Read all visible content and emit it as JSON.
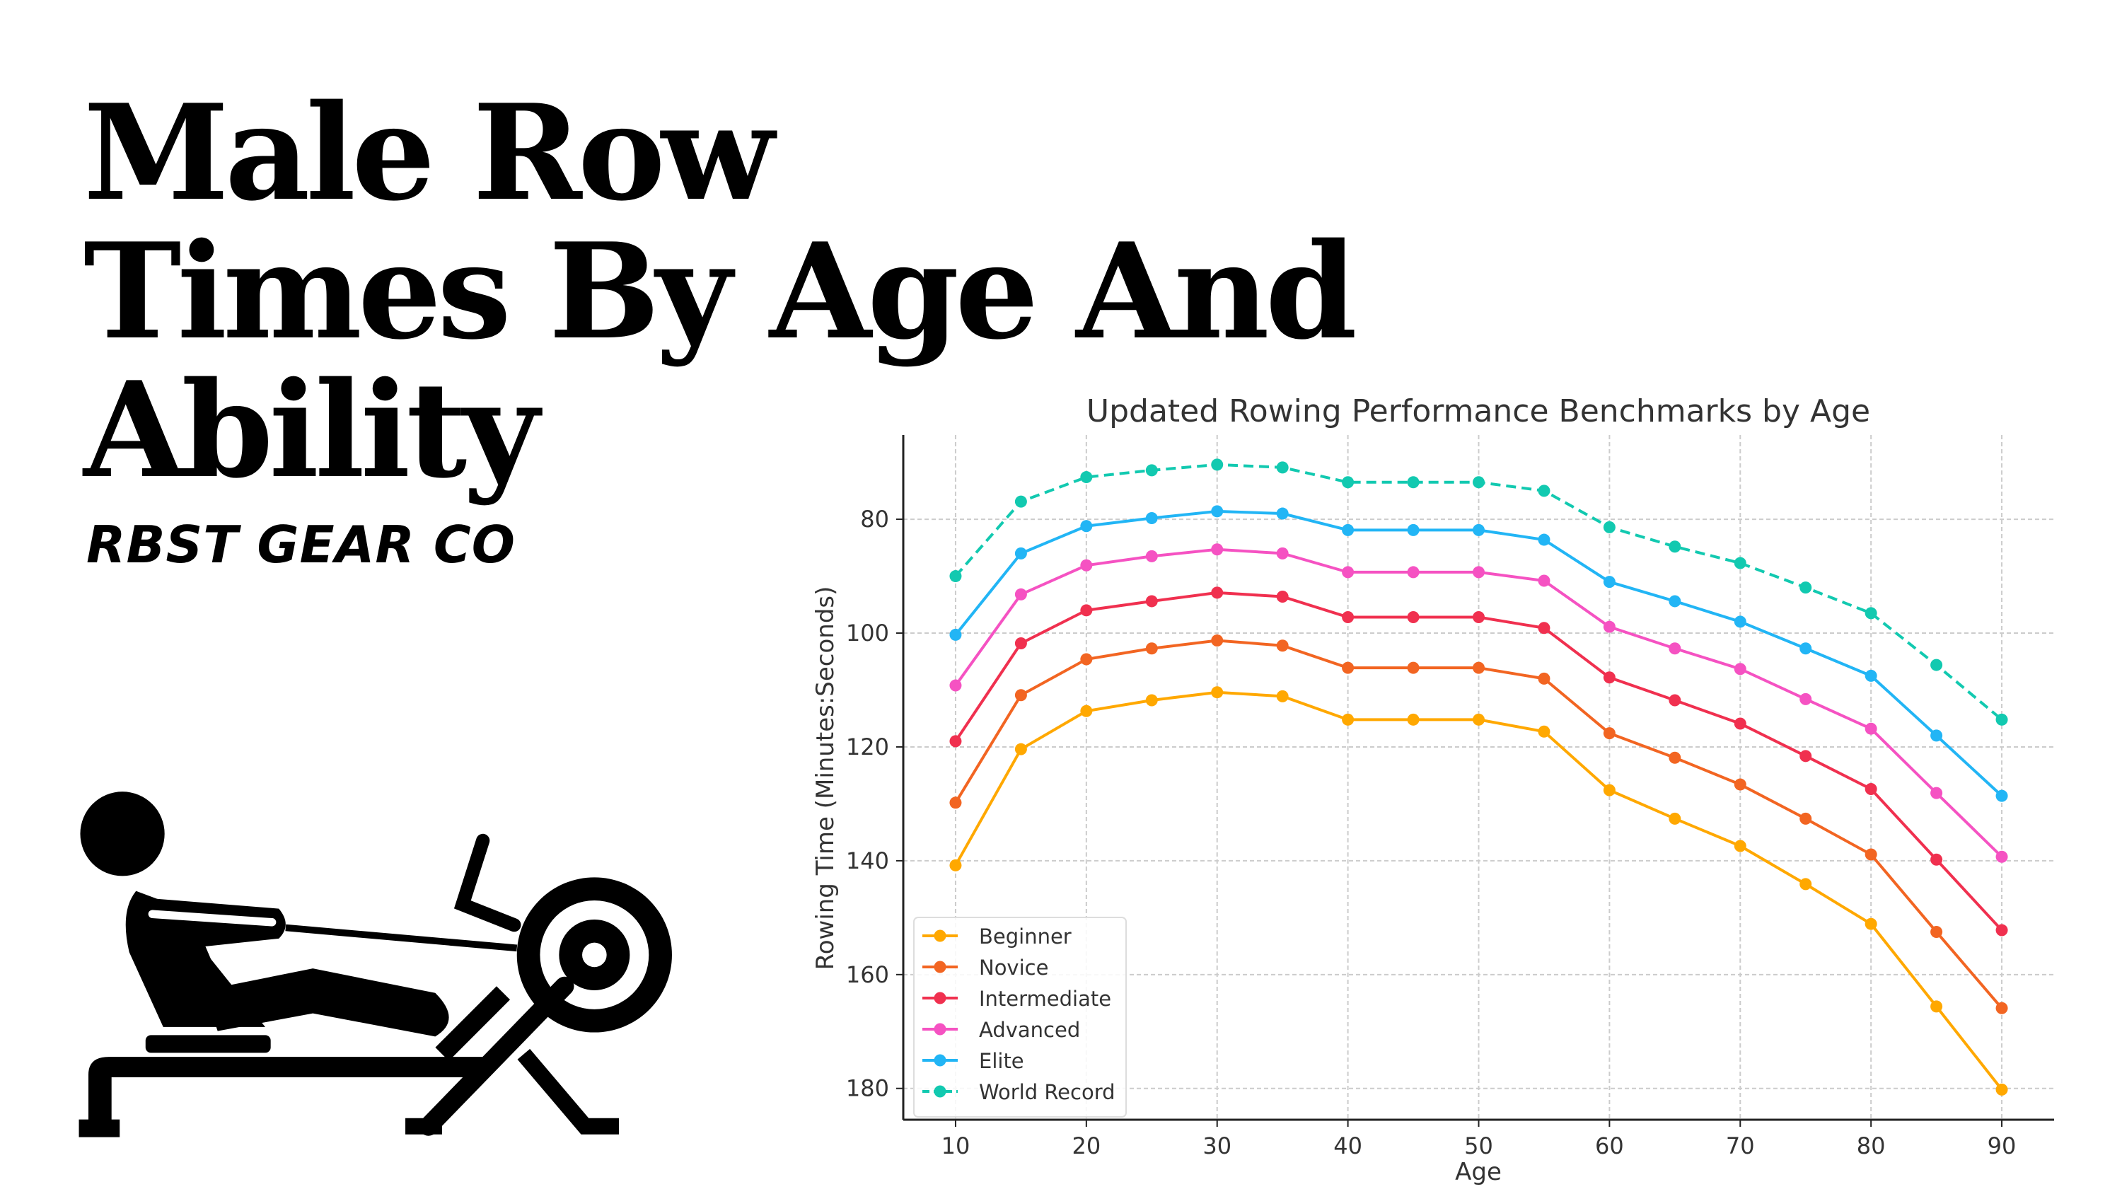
{
  "heading": {
    "lines": [
      "Male Row",
      "Times By Age And",
      "Ability"
    ]
  },
  "brand": "RBST GEAR CO",
  "icon": "rowing-machine-icon",
  "chart_data": {
    "type": "line",
    "title": "Updated Rowing Performance Benchmarks by Age",
    "xlabel": "Age",
    "ylabel": "Rowing Time (Minutes:Seconds)",
    "xlim": [
      6,
      94
    ],
    "ylim": [
      185.5,
      65.2
    ],
    "y_inverted": true,
    "xticks": [
      10,
      20,
      30,
      40,
      50,
      60,
      70,
      80,
      90
    ],
    "yticks": [
      80,
      100,
      120,
      140,
      160,
      180
    ],
    "grid": true,
    "legend_position": "bottom-left",
    "x": [
      10,
      15,
      20,
      25,
      30,
      35,
      40,
      45,
      50,
      55,
      60,
      65,
      70,
      75,
      80,
      85,
      90
    ],
    "series": [
      {
        "name": "Beginner",
        "color": "#ffa800",
        "dash": false,
        "values": [
          140.8,
          120.4,
          113.7,
          111.8,
          110.4,
          111.1,
          115.2,
          115.2,
          115.2,
          117.3,
          127.6,
          132.6,
          137.4,
          144.1,
          151.1,
          165.6,
          180.2
        ]
      },
      {
        "name": "Novice",
        "color": "#f26522",
        "dash": false,
        "values": [
          129.8,
          110.9,
          104.6,
          102.7,
          101.3,
          102.2,
          106.1,
          106.1,
          106.1,
          108.0,
          117.6,
          121.9,
          126.6,
          132.6,
          138.9,
          152.5,
          165.9
        ]
      },
      {
        "name": "Intermediate",
        "color": "#f0304f",
        "dash": false,
        "values": [
          119.0,
          101.8,
          96.0,
          94.4,
          92.9,
          93.6,
          97.2,
          97.2,
          97.2,
          99.1,
          107.8,
          111.8,
          115.9,
          121.6,
          127.4,
          139.8,
          152.2
        ]
      },
      {
        "name": "Advanced",
        "color": "#f552c2",
        "dash": false,
        "values": [
          109.2,
          93.2,
          88.1,
          86.5,
          85.3,
          86.0,
          89.3,
          89.3,
          89.3,
          90.8,
          98.9,
          102.7,
          106.3,
          111.6,
          116.8,
          128.1,
          139.3
        ]
      },
      {
        "name": "Elite",
        "color": "#22b5f5",
        "dash": false,
        "values": [
          100.3,
          86.0,
          81.2,
          79.8,
          78.6,
          79.0,
          81.9,
          81.9,
          81.9,
          83.6,
          91.0,
          94.4,
          98.0,
          102.7,
          107.5,
          118.0,
          128.6
        ]
      },
      {
        "name": "World Record",
        "color": "#12c9b0",
        "dash": true,
        "values": [
          90.0,
          76.9,
          72.6,
          71.4,
          70.4,
          70.9,
          73.5,
          73.5,
          73.5,
          75.0,
          81.4,
          84.8,
          87.7,
          92.0,
          96.5,
          105.6,
          115.2
        ]
      }
    ]
  }
}
